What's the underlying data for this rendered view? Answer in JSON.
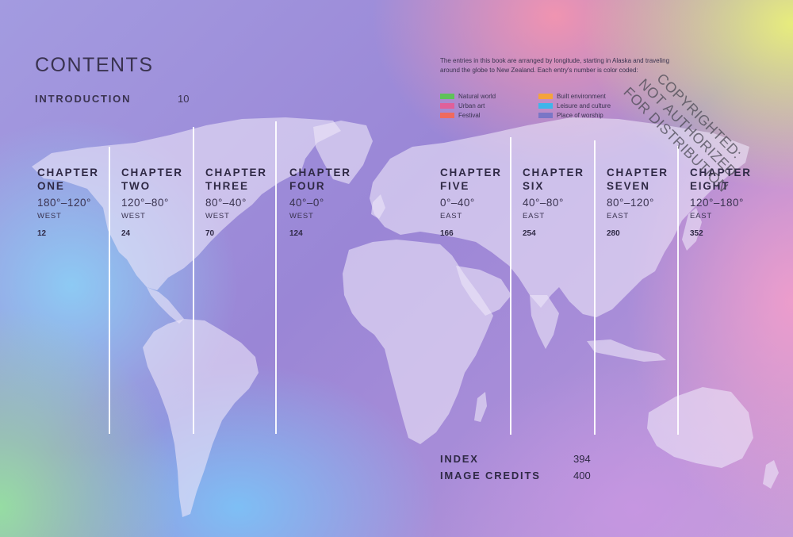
{
  "contents_title": "CONTENTS",
  "introduction": {
    "label": "INTRODUCTION",
    "page": "10"
  },
  "legend_intro": "The entries in this book are arranged by longitude, starting in Alaska and traveling around the globe to New Zealand. Each entry's number is color coded:",
  "legend": [
    {
      "label": "Natural world",
      "color": "#5fc25a"
    },
    {
      "label": "Urban art",
      "color": "#e0609a"
    },
    {
      "label": "Festival",
      "color": "#ef6a5e"
    },
    {
      "label": "Built environment",
      "color": "#f4a33c"
    },
    {
      "label": "Leisure and culture",
      "color": "#3fb5ea"
    },
    {
      "label": "Place of worship",
      "color": "#7a76c6"
    }
  ],
  "chapters": [
    {
      "line1": "CHAPTER",
      "line2": "ONE",
      "range": "180°–120°",
      "direction": "WEST",
      "page": "12"
    },
    {
      "line1": "CHAPTER",
      "line2": "TWO",
      "range": "120°–80°",
      "direction": "WEST",
      "page": "24"
    },
    {
      "line1": "CHAPTER",
      "line2": "THREE",
      "range": "80°–40°",
      "direction": "WEST",
      "page": "70"
    },
    {
      "line1": "CHAPTER",
      "line2": "FOUR",
      "range": "40°–0°",
      "direction": "WEST",
      "page": "124"
    },
    {
      "line1": "CHAPTER",
      "line2": "FIVE",
      "range": "0°–40°",
      "direction": "EAST",
      "page": "166"
    },
    {
      "line1": "CHAPTER",
      "line2": "SIX",
      "range": "40°–80°",
      "direction": "EAST",
      "page": "254"
    },
    {
      "line1": "CHAPTER",
      "line2": "SEVEN",
      "range": "80°–120°",
      "direction": "EAST",
      "page": "280"
    },
    {
      "line1": "CHAPTER",
      "line2": "EIGHT",
      "range": "120°–180°",
      "direction": "EAST",
      "page": "352"
    }
  ],
  "back_matter": [
    {
      "label": "INDEX",
      "page": "394"
    },
    {
      "label": "IMAGE CREDITS",
      "page": "400"
    }
  ],
  "watermark": [
    "COPYRIGHTED:",
    "NOT AUTHORIZED",
    "FOR DISTRIBUTION"
  ]
}
